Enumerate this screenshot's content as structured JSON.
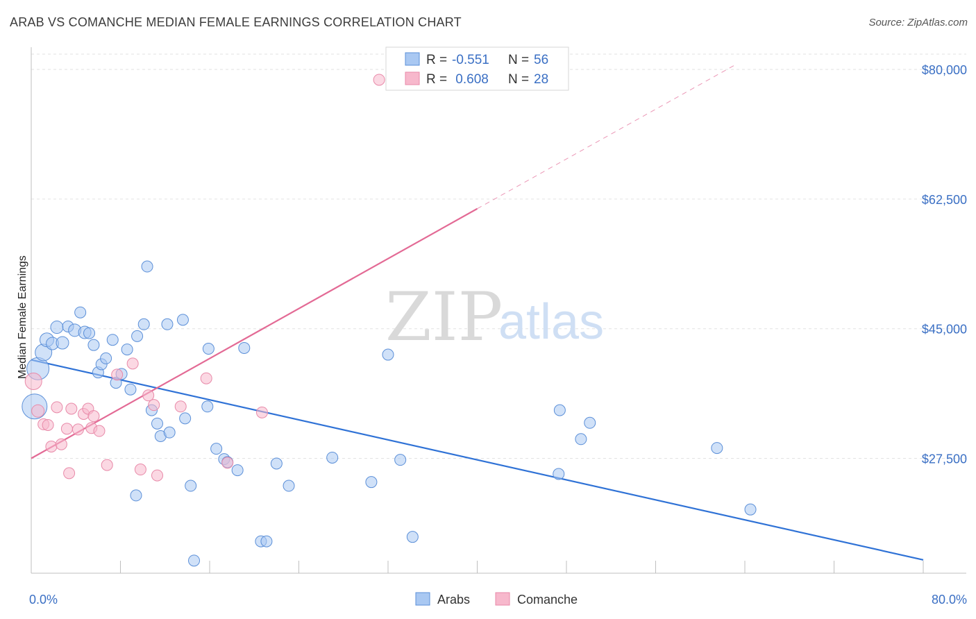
{
  "header": {
    "title": "ARAB VS COMANCHE MEDIAN FEMALE EARNINGS CORRELATION CHART",
    "source": "Source: ZipAtlas.com"
  },
  "watermark": {
    "zip": "ZIP",
    "atlas": "atlas"
  },
  "legend": {
    "rows": [
      {
        "r_label": "R = ",
        "r_value": "-0.551",
        "n_label": "N = ",
        "n_value": "56",
        "color": "#a9c8f2"
      },
      {
        "r_label": "R = ",
        "r_value": " 0.608",
        "n_label": "N = ",
        "n_value": "28",
        "color": "#f7b8cc"
      }
    ]
  },
  "bottom_legend": [
    {
      "label": "Arabs",
      "color": "#a9c8f2"
    },
    {
      "label": "Comanche",
      "color": "#f7b8cc"
    }
  ],
  "chart_data": {
    "type": "scatter",
    "ylabel": "Median Female Earnings",
    "xlim": [
      0,
      80
    ],
    "ylim": [
      12000,
      83000
    ],
    "x_tick_labels": [
      {
        "value": 0,
        "label": "0.0%"
      },
      {
        "value": 80,
        "label": "80.0%"
      }
    ],
    "y_ticks": [
      {
        "value": 27500,
        "label": "$27,500"
      },
      {
        "value": 45000,
        "label": "$45,000"
      },
      {
        "value": 62500,
        "label": "$62,500"
      },
      {
        "value": 80000,
        "label": "$80,000"
      }
    ],
    "x_minor_ticks": [
      0,
      8,
      16,
      24,
      32,
      40,
      48,
      56,
      64,
      72,
      80
    ],
    "grid": true,
    "series": [
      {
        "name": "Arabs",
        "color": "#a9c8f2",
        "stroke": "#5b8fd8",
        "points": [
          [
            0.3,
            34500,
            18
          ],
          [
            0.6,
            39600,
            16
          ],
          [
            1.1,
            41800,
            12
          ],
          [
            1.4,
            43500,
            10
          ],
          [
            1.9,
            43000,
            9
          ],
          [
            2.3,
            45200,
            9
          ],
          [
            2.8,
            43100,
            9
          ],
          [
            3.3,
            45300,
            8
          ],
          [
            3.9,
            44800,
            9
          ],
          [
            4.4,
            47200,
            8
          ],
          [
            4.8,
            44500,
            9
          ],
          [
            5.2,
            44400,
            8
          ],
          [
            5.6,
            42800,
            8
          ],
          [
            6.0,
            39100,
            8
          ],
          [
            6.3,
            40200,
            8
          ],
          [
            6.7,
            41000,
            8
          ],
          [
            7.3,
            43500,
            8
          ],
          [
            7.6,
            37700,
            8
          ],
          [
            8.1,
            38900,
            8
          ],
          [
            8.6,
            42200,
            8
          ],
          [
            8.9,
            36800,
            8
          ],
          [
            9.5,
            44000,
            8
          ],
          [
            10.1,
            45600,
            8
          ],
          [
            10.4,
            53400,
            8
          ],
          [
            10.8,
            34000,
            8
          ],
          [
            11.3,
            32200,
            8
          ],
          [
            11.6,
            30500,
            8
          ],
          [
            12.4,
            31000,
            8
          ],
          [
            12.2,
            45600,
            8
          ],
          [
            13.6,
            46200,
            8
          ],
          [
            13.8,
            32900,
            8
          ],
          [
            14.3,
            23800,
            8
          ],
          [
            15.8,
            34500,
            8
          ],
          [
            15.9,
            42300,
            8
          ],
          [
            16.6,
            28800,
            8
          ],
          [
            17.3,
            27400,
            8
          ],
          [
            17.6,
            27000,
            8
          ],
          [
            18.5,
            25900,
            8
          ],
          [
            19.1,
            42400,
            8
          ],
          [
            20.6,
            16300,
            8
          ],
          [
            22.0,
            26800,
            8
          ],
          [
            23.1,
            23800,
            8
          ],
          [
            27.0,
            27600,
            8
          ],
          [
            30.5,
            24300,
            8
          ],
          [
            32.0,
            41500,
            8
          ],
          [
            33.1,
            27300,
            8
          ],
          [
            34.2,
            16900,
            8
          ],
          [
            47.4,
            34000,
            8
          ],
          [
            47.3,
            25400,
            8
          ],
          [
            49.3,
            30100,
            8
          ],
          [
            50.1,
            32300,
            8
          ],
          [
            61.5,
            28900,
            8
          ],
          [
            64.5,
            20600,
            8
          ],
          [
            9.4,
            22500,
            8
          ],
          [
            14.6,
            13700,
            8
          ],
          [
            21.1,
            16300,
            8
          ]
        ]
      },
      {
        "name": "Comanche",
        "color": "#f7b8cc",
        "stroke": "#e889a8",
        "points": [
          [
            0.2,
            37900,
            12
          ],
          [
            0.6,
            33900,
            9
          ],
          [
            1.1,
            32100,
            8
          ],
          [
            1.5,
            32000,
            8
          ],
          [
            1.8,
            29100,
            8
          ],
          [
            2.3,
            34400,
            8
          ],
          [
            2.7,
            29400,
            8
          ],
          [
            3.2,
            31500,
            8
          ],
          [
            3.4,
            25500,
            8
          ],
          [
            3.6,
            34200,
            8
          ],
          [
            4.2,
            31400,
            8
          ],
          [
            4.7,
            33500,
            8
          ],
          [
            5.1,
            34200,
            8
          ],
          [
            5.4,
            31600,
            8
          ],
          [
            5.6,
            33200,
            8
          ],
          [
            6.1,
            31200,
            8
          ],
          [
            6.8,
            26600,
            8
          ],
          [
            7.7,
            38800,
            8
          ],
          [
            9.1,
            40300,
            8
          ],
          [
            9.8,
            26000,
            8
          ],
          [
            10.5,
            36000,
            8
          ],
          [
            11.0,
            34700,
            8
          ],
          [
            11.3,
            25200,
            8
          ],
          [
            13.4,
            34500,
            8
          ],
          [
            15.7,
            38300,
            8
          ],
          [
            17.6,
            26900,
            8
          ],
          [
            20.7,
            33700,
            8
          ],
          [
            31.2,
            78600,
            8
          ]
        ]
      }
    ],
    "trendlines": [
      {
        "series": "Arabs",
        "color": "#2f72d6",
        "from": [
          0,
          40800
        ],
        "to": [
          80,
          13800
        ],
        "dashed_to": null
      },
      {
        "series": "Comanche",
        "color": "#e36a95",
        "from": [
          0,
          27500
        ],
        "to": [
          40,
          61200
        ],
        "dashed_to": [
          63,
          80500
        ]
      }
    ]
  }
}
